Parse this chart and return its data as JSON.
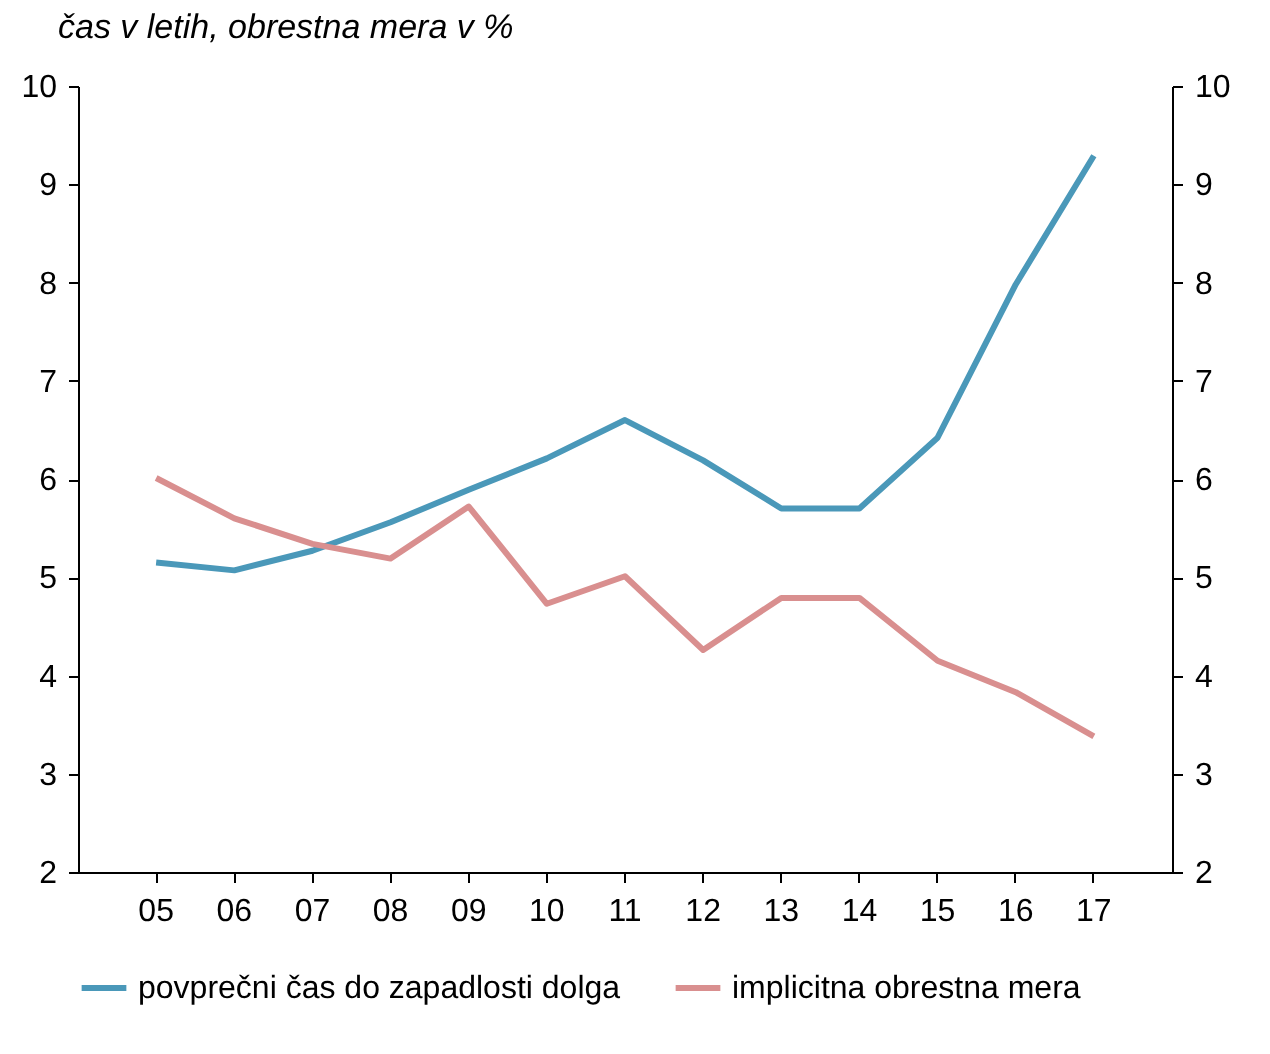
{
  "chart_data": {
    "type": "line",
    "title": "čas v letih, obrestna mera v %",
    "categories": [
      "05",
      "06",
      "07",
      "08",
      "09",
      "10",
      "11",
      "12",
      "13",
      "14",
      "15",
      "16",
      "17"
    ],
    "series": [
      {
        "name": "povprečni čas do zapadlosti dolga",
        "color": "#4a98b9",
        "values": [
          5.15,
          5.07,
          5.27,
          5.56,
          5.89,
          6.21,
          6.6,
          6.19,
          5.7,
          5.7,
          6.42,
          7.98,
          9.29
        ]
      },
      {
        "name": "implicitna obrestna mera",
        "color": "#d98f8f",
        "values": [
          6.01,
          5.6,
          5.34,
          5.19,
          5.72,
          4.73,
          5.01,
          4.26,
          4.79,
          4.79,
          4.15,
          3.83,
          3.38
        ]
      }
    ],
    "ylim": [
      2,
      10
    ],
    "yticks": [
      2,
      3,
      4,
      5,
      6,
      7,
      8,
      9,
      10
    ],
    "y2lim": [
      2,
      10
    ],
    "y2ticks": [
      2,
      3,
      4,
      5,
      6,
      7,
      8,
      9,
      10
    ],
    "grid": false,
    "legend": "bottom",
    "marker": "none",
    "line_style": "solid"
  }
}
